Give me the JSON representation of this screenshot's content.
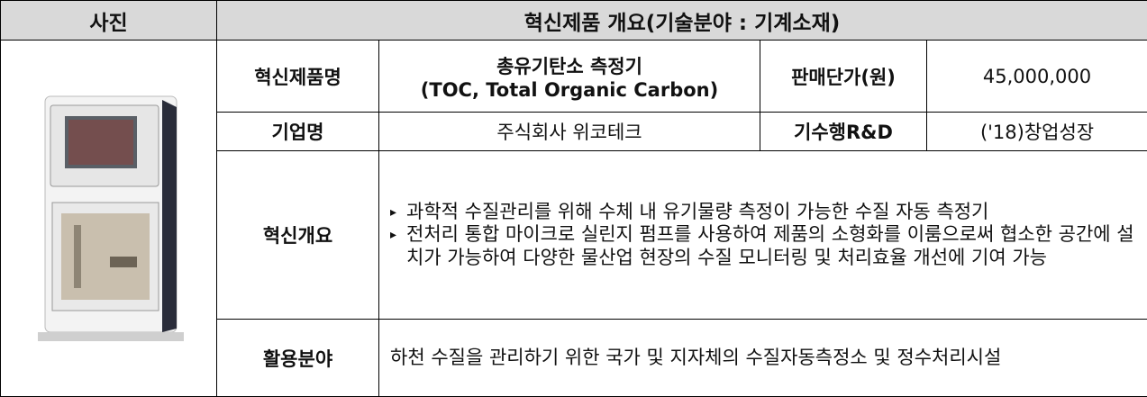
{
  "header": {
    "photo": "사진",
    "overview": "혁신제품 개요(기술분야 : 기계소재)"
  },
  "product": {
    "name_label": "혁신제품명",
    "name": [
      "총유기탄소 측정기",
      "(TOC, Total Organic Carbon)"
    ],
    "price_label": "판매단가(원)",
    "price": "45,000,000",
    "company_label": "기업명",
    "company": "주식회사 위코테크",
    "rnd_label": "기수행R&D",
    "rnd": "('18)창업성장",
    "summary_label": "혁신개요",
    "summary": [
      "과학적 수질관리를 위해 수체 내 유기물량 측정이 가능한 수질 자동 측정기",
      "전처리 통합 마이크로 실린지 펌프를 사용하여 제품의 소형화를 이룸으로써 협소한 공간에 설치가 가능하여 다양한 물산업 현장의 수질 모니터링 및 처리효율 개선에 기여 가능"
    ],
    "usage_label": "활용분야",
    "usage": "하천 수질을 관리하기 위한 국가 및 지자체의 수질자동측정소 및 정수처리시설"
  }
}
